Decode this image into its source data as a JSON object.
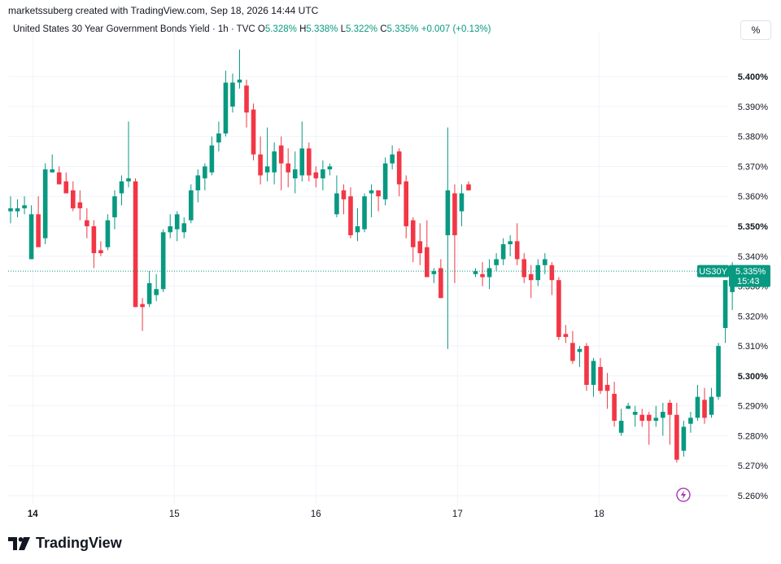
{
  "header": {
    "credit": "marketssuberg created with TradingView.com, Sep 18, 2026 14:44 UTC"
  },
  "symbol": {
    "name": "United States 30 Year Government Bonds Yield · 1h · TVC",
    "open_label": "O",
    "open_value": "5.328%",
    "high_label": "H",
    "high_value": "5.338%",
    "low_label": "L",
    "low_value": "5.322%",
    "close_label": "C",
    "close_value": "5.335%",
    "change": "+0.007 (+0.13%)"
  },
  "toolbar": {
    "percent_button": "%"
  },
  "price_tag": {
    "ticker": "US30Y",
    "price": "5.335%",
    "countdown": "15:43"
  },
  "brand": {
    "name": "TradingView"
  },
  "colors": {
    "up": "#089981",
    "down": "#f23645",
    "grid": "#f0f3fa",
    "text": "#131722"
  },
  "chart_data": {
    "type": "candlestick",
    "title": "United States 30 Year Government Bonds Yield · 1h · TVC",
    "ylim": [
      5.257,
      5.412
    ],
    "y_ticks": [
      "5.260%",
      "5.270%",
      "5.280%",
      "5.290%",
      "5.300%",
      "5.310%",
      "5.320%",
      "5.330%",
      "5.340%",
      "5.350%",
      "5.360%",
      "5.370%",
      "5.380%",
      "5.390%",
      "5.400%"
    ],
    "y_ticks_bold": [
      "5.300%",
      "5.350%",
      "5.400%"
    ],
    "x_ticks": [
      {
        "label": "14",
        "index": 3.2
      },
      {
        "label": "15",
        "index": 23.6
      },
      {
        "label": "16",
        "index": 44.0
      },
      {
        "label": "17",
        "index": 64.4
      },
      {
        "label": "18",
        "index": 84.8
      }
    ],
    "last_price": 5.335,
    "grid": true,
    "candles": [
      {
        "o": 5.355,
        "h": 5.36,
        "l": 5.351,
        "c": 5.356
      },
      {
        "o": 5.355,
        "h": 5.359,
        "l": 5.353,
        "c": 5.356
      },
      {
        "o": 5.356,
        "h": 5.36,
        "l": 5.354,
        "c": 5.357
      },
      {
        "o": 5.339,
        "h": 5.357,
        "l": 5.339,
        "c": 5.354
      },
      {
        "o": 5.354,
        "h": 5.36,
        "l": 5.344,
        "c": 5.343
      },
      {
        "o": 5.346,
        "h": 5.371,
        "l": 5.344,
        "c": 5.369
      },
      {
        "o": 5.368,
        "h": 5.374,
        "l": 5.368,
        "c": 5.369
      },
      {
        "o": 5.368,
        "h": 5.37,
        "l": 5.364,
        "c": 5.364
      },
      {
        "o": 5.365,
        "h": 5.368,
        "l": 5.361,
        "c": 5.361
      },
      {
        "o": 5.362,
        "h": 5.365,
        "l": 5.355,
        "c": 5.356
      },
      {
        "o": 5.358,
        "h": 5.362,
        "l": 5.352,
        "c": 5.356
      },
      {
        "o": 5.352,
        "h": 5.356,
        "l": 5.346,
        "c": 5.35
      },
      {
        "o": 5.35,
        "h": 5.352,
        "l": 5.336,
        "c": 5.341
      },
      {
        "o": 5.342,
        "h": 5.345,
        "l": 5.34,
        "c": 5.341
      },
      {
        "o": 5.343,
        "h": 5.354,
        "l": 5.342,
        "c": 5.352
      },
      {
        "o": 5.353,
        "h": 5.362,
        "l": 5.349,
        "c": 5.36
      },
      {
        "o": 5.361,
        "h": 5.367,
        "l": 5.357,
        "c": 5.365
      },
      {
        "o": 5.365,
        "h": 5.385,
        "l": 5.363,
        "c": 5.366
      },
      {
        "o": 5.365,
        "h": 5.366,
        "l": 5.323,
        "c": 5.323
      },
      {
        "o": 5.324,
        "h": 5.326,
        "l": 5.315,
        "c": 5.323
      },
      {
        "o": 5.324,
        "h": 5.335,
        "l": 5.323,
        "c": 5.331
      },
      {
        "o": 5.327,
        "h": 5.334,
        "l": 5.325,
        "c": 5.329
      },
      {
        "o": 5.329,
        "h": 5.349,
        "l": 5.328,
        "c": 5.348
      },
      {
        "o": 5.348,
        "h": 5.354,
        "l": 5.346,
        "c": 5.35
      },
      {
        "o": 5.349,
        "h": 5.355,
        "l": 5.345,
        "c": 5.354
      },
      {
        "o": 5.348,
        "h": 5.353,
        "l": 5.346,
        "c": 5.351
      },
      {
        "o": 5.352,
        "h": 5.364,
        "l": 5.351,
        "c": 5.362
      },
      {
        "o": 5.362,
        "h": 5.369,
        "l": 5.358,
        "c": 5.367
      },
      {
        "o": 5.366,
        "h": 5.371,
        "l": 5.362,
        "c": 5.37
      },
      {
        "o": 5.368,
        "h": 5.38,
        "l": 5.367,
        "c": 5.377
      },
      {
        "o": 5.378,
        "h": 5.385,
        "l": 5.375,
        "c": 5.381
      },
      {
        "o": 5.381,
        "h": 5.402,
        "l": 5.38,
        "c": 5.398
      },
      {
        "o": 5.39,
        "h": 5.401,
        "l": 5.388,
        "c": 5.398
      },
      {
        "o": 5.398,
        "h": 5.409,
        "l": 5.396,
        "c": 5.399
      },
      {
        "o": 5.397,
        "h": 5.399,
        "l": 5.383,
        "c": 5.388
      },
      {
        "o": 5.389,
        "h": 5.391,
        "l": 5.372,
        "c": 5.374
      },
      {
        "o": 5.374,
        "h": 5.38,
        "l": 5.364,
        "c": 5.367
      },
      {
        "o": 5.368,
        "h": 5.383,
        "l": 5.365,
        "c": 5.37
      },
      {
        "o": 5.368,
        "h": 5.378,
        "l": 5.364,
        "c": 5.375
      },
      {
        "o": 5.377,
        "h": 5.38,
        "l": 5.362,
        "c": 5.371
      },
      {
        "o": 5.371,
        "h": 5.376,
        "l": 5.363,
        "c": 5.368
      },
      {
        "o": 5.366,
        "h": 5.375,
        "l": 5.361,
        "c": 5.369
      },
      {
        "o": 5.367,
        "h": 5.385,
        "l": 5.365,
        "c": 5.376
      },
      {
        "o": 5.376,
        "h": 5.378,
        "l": 5.365,
        "c": 5.367
      },
      {
        "o": 5.368,
        "h": 5.37,
        "l": 5.363,
        "c": 5.366
      },
      {
        "o": 5.366,
        "h": 5.372,
        "l": 5.362,
        "c": 5.369
      },
      {
        "o": 5.369,
        "h": 5.371,
        "l": 5.367,
        "c": 5.37
      },
      {
        "o": 5.354,
        "h": 5.367,
        "l": 5.353,
        "c": 5.361
      },
      {
        "o": 5.362,
        "h": 5.364,
        "l": 5.354,
        "c": 5.359
      },
      {
        "o": 5.36,
        "h": 5.363,
        "l": 5.346,
        "c": 5.347
      },
      {
        "o": 5.348,
        "h": 5.356,
        "l": 5.345,
        "c": 5.35
      },
      {
        "o": 5.349,
        "h": 5.361,
        "l": 5.348,
        "c": 5.36
      },
      {
        "o": 5.361,
        "h": 5.364,
        "l": 5.353,
        "c": 5.362
      },
      {
        "o": 5.362,
        "h": 5.362,
        "l": 5.355,
        "c": 5.36
      },
      {
        "o": 5.359,
        "h": 5.373,
        "l": 5.357,
        "c": 5.371
      },
      {
        "o": 5.371,
        "h": 5.377,
        "l": 5.369,
        "c": 5.374
      },
      {
        "o": 5.375,
        "h": 5.376,
        "l": 5.36,
        "c": 5.364
      },
      {
        "o": 5.365,
        "h": 5.367,
        "l": 5.346,
        "c": 5.35
      },
      {
        "o": 5.352,
        "h": 5.353,
        "l": 5.338,
        "c": 5.343
      },
      {
        "o": 5.345,
        "h": 5.351,
        "l": 5.337,
        "c": 5.341
      },
      {
        "o": 5.343,
        "h": 5.352,
        "l": 5.333,
        "c": 5.333
      },
      {
        "o": 5.334,
        "h": 5.336,
        "l": 5.331,
        "c": 5.335
      },
      {
        "o": 5.336,
        "h": 5.339,
        "l": 5.326,
        "c": 5.326
      },
      {
        "o": 5.347,
        "h": 5.383,
        "l": 5.309,
        "c": 5.362
      },
      {
        "o": 5.361,
        "h": 5.364,
        "l": 5.331,
        "c": 5.347
      },
      {
        "o": 5.355,
        "h": 5.364,
        "l": 5.35,
        "c": 5.361
      },
      {
        "o": 5.364,
        "h": 5.365,
        "l": 5.362,
        "c": 5.362
      },
      {
        "o": 5.334,
        "h": 5.336,
        "l": 5.333,
        "c": 5.335
      },
      {
        "o": 5.334,
        "h": 5.338,
        "l": 5.33,
        "c": 5.333
      },
      {
        "o": 5.333,
        "h": 5.339,
        "l": 5.329,
        "c": 5.336
      },
      {
        "o": 5.337,
        "h": 5.341,
        "l": 5.335,
        "c": 5.339
      },
      {
        "o": 5.339,
        "h": 5.346,
        "l": 5.337,
        "c": 5.344
      },
      {
        "o": 5.344,
        "h": 5.347,
        "l": 5.34,
        "c": 5.345
      },
      {
        "o": 5.345,
        "h": 5.351,
        "l": 5.337,
        "c": 5.339
      },
      {
        "o": 5.339,
        "h": 5.341,
        "l": 5.331,
        "c": 5.333
      },
      {
        "o": 5.334,
        "h": 5.337,
        "l": 5.326,
        "c": 5.332
      },
      {
        "o": 5.332,
        "h": 5.339,
        "l": 5.33,
        "c": 5.337
      },
      {
        "o": 5.337,
        "h": 5.341,
        "l": 5.334,
        "c": 5.339
      },
      {
        "o": 5.337,
        "h": 5.338,
        "l": 5.327,
        "c": 5.332
      },
      {
        "o": 5.332,
        "h": 5.333,
        "l": 5.312,
        "c": 5.313
      },
      {
        "o": 5.314,
        "h": 5.317,
        "l": 5.311,
        "c": 5.313
      },
      {
        "o": 5.311,
        "h": 5.315,
        "l": 5.304,
        "c": 5.305
      },
      {
        "o": 5.308,
        "h": 5.31,
        "l": 5.303,
        "c": 5.309
      },
      {
        "o": 5.31,
        "h": 5.311,
        "l": 5.295,
        "c": 5.297
      },
      {
        "o": 5.297,
        "h": 5.306,
        "l": 5.293,
        "c": 5.305
      },
      {
        "o": 5.303,
        "h": 5.306,
        "l": 5.294,
        "c": 5.295
      },
      {
        "o": 5.297,
        "h": 5.301,
        "l": 5.289,
        "c": 5.295
      },
      {
        "o": 5.294,
        "h": 5.298,
        "l": 5.283,
        "c": 5.285
      },
      {
        "o": 5.281,
        "h": 5.289,
        "l": 5.28,
        "c": 5.285
      },
      {
        "o": 5.289,
        "h": 5.291,
        "l": 5.289,
        "c": 5.29
      },
      {
        "o": 5.287,
        "h": 5.29,
        "l": 5.283,
        "c": 5.288
      },
      {
        "o": 5.287,
        "h": 5.289,
        "l": 5.283,
        "c": 5.285
      },
      {
        "o": 5.287,
        "h": 5.288,
        "l": 5.277,
        "c": 5.285
      },
      {
        "o": 5.285,
        "h": 5.29,
        "l": 5.283,
        "c": 5.286
      },
      {
        "o": 5.286,
        "h": 5.291,
        "l": 5.28,
        "c": 5.288
      },
      {
        "o": 5.291,
        "h": 5.292,
        "l": 5.277,
        "c": 5.287
      },
      {
        "o": 5.287,
        "h": 5.291,
        "l": 5.271,
        "c": 5.272
      },
      {
        "o": 5.275,
        "h": 5.285,
        "l": 5.273,
        "c": 5.283
      },
      {
        "o": 5.284,
        "h": 5.288,
        "l": 5.281,
        "c": 5.286
      },
      {
        "o": 5.286,
        "h": 5.297,
        "l": 5.285,
        "c": 5.293
      },
      {
        "o": 5.292,
        "h": 5.296,
        "l": 5.284,
        "c": 5.286
      },
      {
        "o": 5.287,
        "h": 5.296,
        "l": 5.286,
        "c": 5.293
      },
      {
        "o": 5.293,
        "h": 5.311,
        "l": 5.292,
        "c": 5.31
      },
      {
        "o": 5.316,
        "h": 5.332,
        "l": 5.311,
        "c": 5.332
      },
      {
        "o": 5.328,
        "h": 5.338,
        "l": 5.322,
        "c": 5.335
      }
    ]
  }
}
